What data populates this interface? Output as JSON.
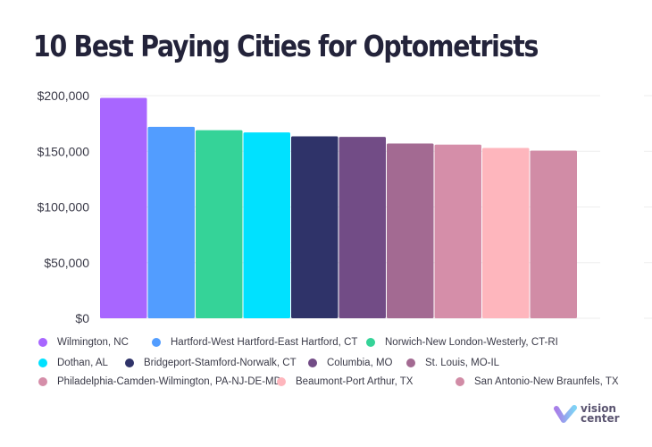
{
  "chart_data": {
    "type": "bar",
    "title": "10 Best Paying Cities for Optometrists",
    "xlabel": "",
    "ylabel": "",
    "ylim": [
      0,
      200000
    ],
    "yticks": [
      0,
      50000,
      100000,
      150000,
      200000
    ],
    "ytick_labels": [
      "$0",
      "$50,000",
      "$100,000",
      "$150,000",
      "$200,000"
    ],
    "grid": true,
    "legend_position": "bottom",
    "categories": [
      "Wilmington, NC",
      "Hartford-West Hartford-East Hartford, CT",
      "Norwich-New London-Westerly, CT-RI",
      "Dothan, AL",
      "Bridgeport-Stamford-Norwalk, CT",
      "Columbia, MO",
      "St. Louis, MO-IL",
      "Philadelphia-Camden-Wilmington, PA-NJ-DE-MD",
      "Beaumont-Port Arthur, TX",
      "San Antonio-New Braunfels, TX"
    ],
    "values": [
      198000,
      172000,
      169000,
      167000,
      163500,
      163000,
      157000,
      156000,
      153000,
      150600
    ],
    "colors": [
      "#a866ff",
      "#529dff",
      "#35d398",
      "#00e1ff",
      "#2f3369",
      "#724c86",
      "#a36a92",
      "#d58ea9",
      "#feb6bd",
      "#d18ca6"
    ]
  },
  "logo": {
    "line1": "vision",
    "line2": "center"
  }
}
